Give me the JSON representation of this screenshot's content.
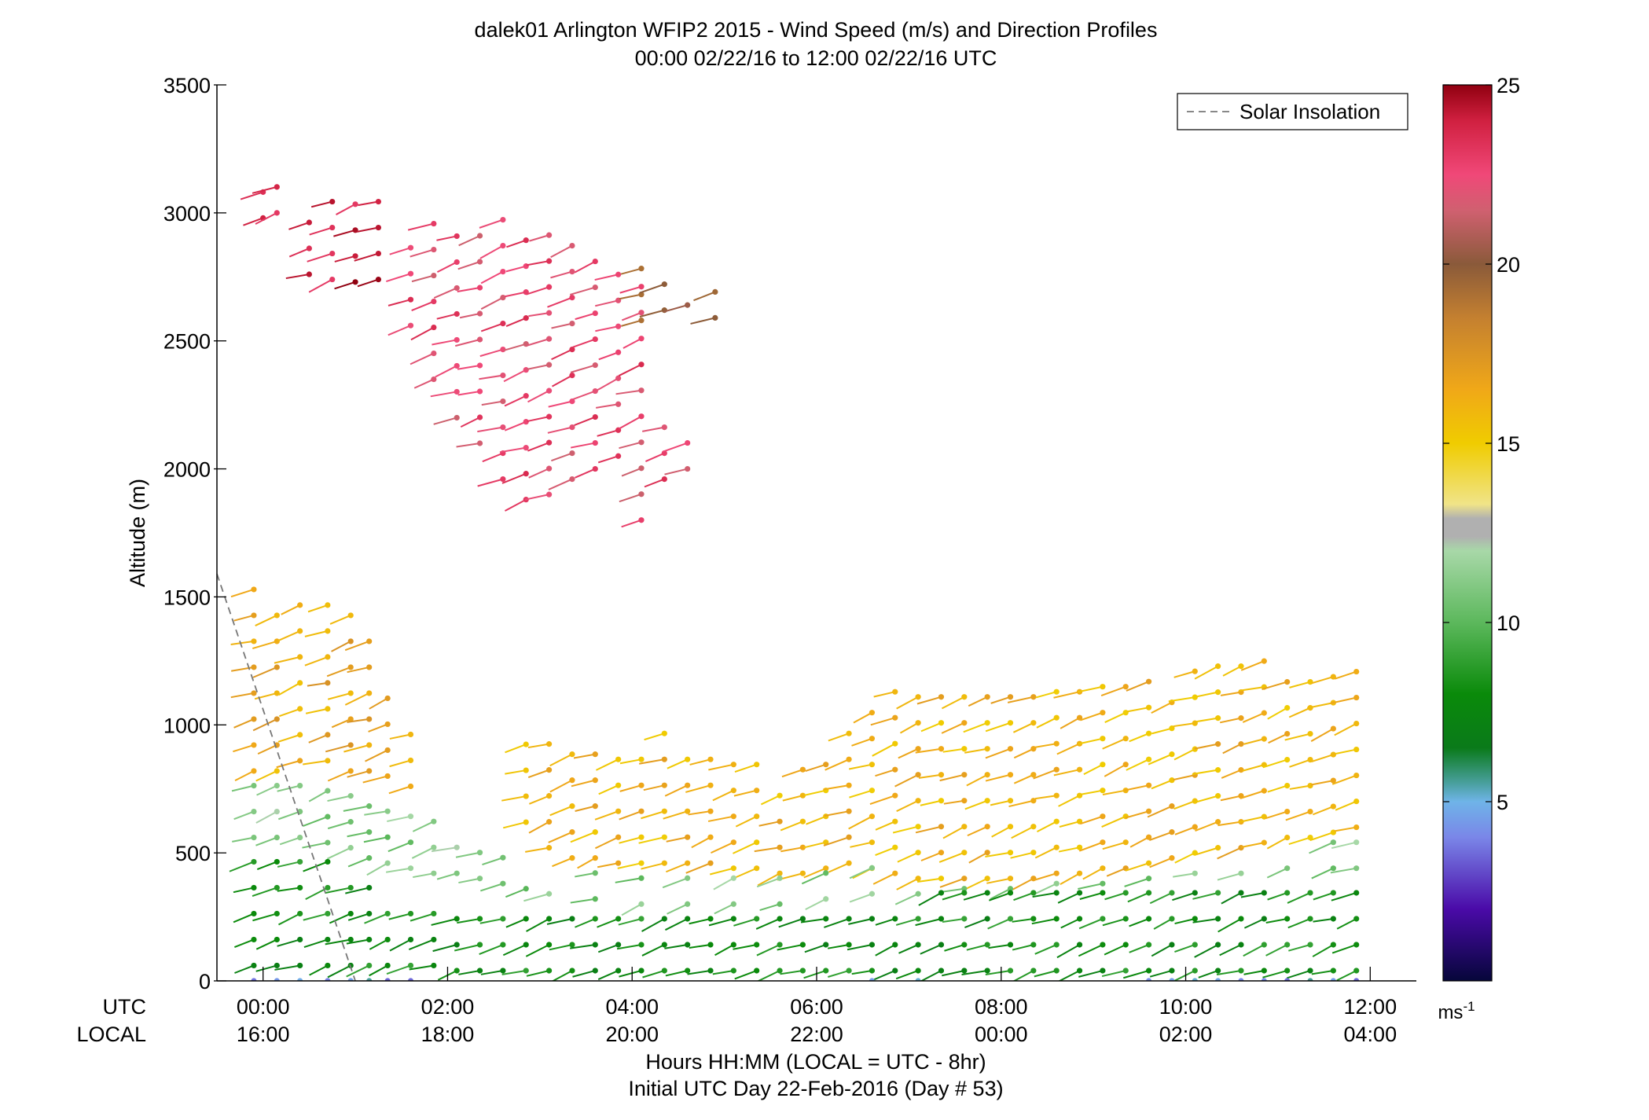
{
  "chart_data": {
    "type": "wind-barb-profile",
    "title": "dalek01 Arlington WFIP2 2015 - Wind Speed (m/s) and Direction Profiles",
    "subtitle": "00:00 02/22/16 to 12:00 02/22/16  UTC",
    "ylabel": "Altitude (m)",
    "xlabel": "Hours HH:MM  (LOCAL = UTC - 8hr)",
    "xlabel2": "Initial UTC Day 22-Feb-2016 (Day # 53)",
    "xlim": [
      -0.5,
      12.5
    ],
    "ylim": [
      0,
      3500
    ],
    "yticks": [
      0,
      500,
      1000,
      1500,
      2000,
      2500,
      3000,
      3500
    ],
    "xticks": [
      0,
      2,
      4,
      6,
      8,
      10,
      12
    ],
    "xtick_utc": [
      "00:00",
      "02:00",
      "04:00",
      "06:00",
      "08:00",
      "10:00",
      "12:00"
    ],
    "xtick_local": [
      "16:00",
      "18:00",
      "20:00",
      "22:00",
      "00:00",
      "02:00",
      "04:00"
    ],
    "row_label_utc": "UTC",
    "row_label_local": "LOCAL",
    "legend": {
      "label": "Solar Insolation",
      "placement": "top-right",
      "color": "#888888"
    },
    "solar_insolation": {
      "x": [
        -0.5,
        1.0
      ],
      "y": [
        1590,
        0
      ]
    },
    "colorbar": {
      "range": [
        0,
        25
      ],
      "ticks": [
        5,
        10,
        15,
        20,
        25
      ],
      "unit": "ms-1",
      "stops": [
        {
          "v": 0,
          "c": "#06063a"
        },
        {
          "v": 2,
          "c": "#4a0aa8"
        },
        {
          "v": 4,
          "c": "#7a86e8"
        },
        {
          "v": 5,
          "c": "#6fb4e8"
        },
        {
          "v": 5.5,
          "c": "#4aa0a0"
        },
        {
          "v": 6.5,
          "c": "#0a7a1a"
        },
        {
          "v": 8,
          "c": "#0a8a0a"
        },
        {
          "v": 10,
          "c": "#5cb85c"
        },
        {
          "v": 12,
          "c": "#a8d8a8"
        },
        {
          "v": 12.4,
          "c": "#b0b0b0"
        },
        {
          "v": 12.9,
          "c": "#b0b0b0"
        },
        {
          "v": 13.3,
          "c": "#f0e488"
        },
        {
          "v": 15,
          "c": "#f0cc00"
        },
        {
          "v": 16.5,
          "c": "#f0a818"
        },
        {
          "v": 18.5,
          "c": "#c48030"
        },
        {
          "v": 20,
          "c": "#8a5a3a"
        },
        {
          "v": 21.5,
          "c": "#d06070"
        },
        {
          "v": 22.5,
          "c": "#f04878"
        },
        {
          "v": 24,
          "c": "#d02040"
        },
        {
          "v": 25,
          "c": "#900010"
        }
      ]
    },
    "barb_fields": [
      {
        "name": "upper jet",
        "color_speed": 24,
        "cols": [
          [
            0.0,
            2980,
            3120
          ],
          [
            0.15,
            3000,
            3180
          ],
          [
            0.5,
            2760,
            3060
          ],
          [
            0.75,
            2740,
            3100
          ],
          [
            1.0,
            2730,
            3080
          ],
          [
            1.25,
            2740,
            3060
          ]
        ]
      },
      {
        "name": "upper jet pink",
        "color_speed": 22.5,
        "cols": [
          [
            1.6,
            2560,
            2940
          ],
          [
            1.85,
            2350,
            2980
          ],
          [
            2.1,
            2200,
            2960
          ],
          [
            2.35,
            2100,
            2980
          ],
          [
            2.6,
            1960,
            2980
          ],
          [
            2.85,
            1880,
            2980
          ],
          [
            3.1,
            1900,
            2980
          ],
          [
            3.35,
            1960,
            2920
          ],
          [
            3.6,
            2000,
            2820
          ],
          [
            3.85,
            2050,
            2820
          ],
          [
            4.1,
            1800,
            2780
          ],
          [
            4.35,
            1960,
            2240
          ],
          [
            4.6,
            2000,
            2150
          ]
        ]
      },
      {
        "name": "upper brown",
        "color_speed": 20,
        "cols": [
          [
            4.1,
            2580,
            2780
          ],
          [
            4.35,
            2620,
            2780
          ],
          [
            4.6,
            2640,
            2700
          ],
          [
            4.9,
            2590,
            2700
          ]
        ]
      },
      {
        "name": "residual jet",
        "color_speed": 16.5,
        "cols": [
          [
            -0.1,
            820,
            1530
          ],
          [
            0.15,
            820,
            1500
          ],
          [
            0.4,
            860,
            1480
          ],
          [
            0.7,
            860,
            1470
          ],
          [
            0.95,
            820,
            1480
          ],
          [
            1.15,
            820,
            1340
          ],
          [
            1.35,
            800,
            1200
          ],
          [
            1.6,
            760,
            1050
          ]
        ]
      },
      {
        "name": "night jet",
        "color_speed": 16,
        "cols": [
          [
            2.85,
            620,
            940
          ],
          [
            3.1,
            520,
            980
          ],
          [
            3.35,
            480,
            960
          ],
          [
            3.6,
            480,
            980
          ],
          [
            3.85,
            460,
            960
          ],
          [
            4.1,
            460,
            960
          ],
          [
            4.35,
            460,
            980
          ],
          [
            4.6,
            460,
            960
          ],
          [
            4.85,
            460,
            900
          ],
          [
            5.1,
            440,
            880
          ],
          [
            5.35,
            440,
            860
          ],
          [
            5.6,
            420,
            820
          ],
          [
            5.85,
            420,
            860
          ],
          [
            6.1,
            440,
            940
          ],
          [
            6.35,
            460,
            1000
          ],
          [
            6.6,
            440,
            1080
          ],
          [
            6.85,
            420,
            1160
          ],
          [
            7.1,
            400,
            1200
          ],
          [
            7.35,
            400,
            1200
          ],
          [
            7.6,
            400,
            1180
          ],
          [
            7.85,
            400,
            1180
          ],
          [
            8.1,
            400,
            1200
          ],
          [
            8.35,
            400,
            1180
          ],
          [
            8.6,
            420,
            1170
          ],
          [
            8.85,
            420,
            1170
          ],
          [
            9.1,
            440,
            1170
          ],
          [
            9.35,
            440,
            1170
          ],
          [
            9.6,
            460,
            1170
          ],
          [
            9.85,
            480,
            1160
          ],
          [
            10.1,
            500,
            1240
          ],
          [
            10.35,
            520,
            1300
          ],
          [
            10.6,
            520,
            1320
          ],
          [
            10.85,
            540,
            1300
          ],
          [
            11.1,
            560,
            1260
          ],
          [
            11.35,
            560,
            1240
          ],
          [
            11.6,
            580,
            1260
          ],
          [
            11.85,
            600,
            1240
          ]
        ]
      },
      {
        "name": "mid transition",
        "color_speed": 11,
        "cols": [
          [
            -0.1,
            560,
            820
          ],
          [
            0.15,
            560,
            800
          ],
          [
            0.4,
            560,
            760
          ],
          [
            0.7,
            540,
            760
          ],
          [
            0.95,
            520,
            760
          ],
          [
            1.15,
            480,
            760
          ],
          [
            1.35,
            460,
            740
          ],
          [
            1.6,
            440,
            740
          ],
          [
            1.85,
            420,
            680
          ],
          [
            2.1,
            420,
            600
          ],
          [
            2.35,
            400,
            540
          ],
          [
            2.6,
            380,
            480
          ],
          [
            2.85,
            360,
            440
          ],
          [
            3.1,
            340,
            420
          ],
          [
            3.6,
            320,
            440
          ],
          [
            4.1,
            300,
            420
          ],
          [
            4.6,
            300,
            420
          ],
          [
            5.1,
            300,
            400
          ],
          [
            5.6,
            300,
            400
          ],
          [
            6.1,
            320,
            420
          ],
          [
            6.6,
            340,
            440
          ],
          [
            7.1,
            340,
            420
          ],
          [
            7.6,
            360,
            420
          ],
          [
            8.1,
            360,
            420
          ],
          [
            8.6,
            380,
            440
          ],
          [
            9.1,
            380,
            440
          ],
          [
            9.6,
            400,
            460
          ],
          [
            10.1,
            420,
            480
          ],
          [
            10.6,
            420,
            500
          ],
          [
            11.1,
            440,
            520
          ],
          [
            11.6,
            440,
            540
          ],
          [
            11.85,
            440,
            560
          ]
        ]
      },
      {
        "name": "low level",
        "color_speed": 8,
        "cols": [
          [
            -0.1,
            60,
            540
          ],
          [
            0.15,
            60,
            520
          ],
          [
            0.4,
            60,
            500
          ],
          [
            0.7,
            60,
            480
          ],
          [
            0.95,
            60,
            420
          ],
          [
            1.15,
            60,
            370
          ],
          [
            1.35,
            60,
            340
          ],
          [
            1.6,
            60,
            320
          ],
          [
            1.85,
            60,
            300
          ],
          [
            2.1,
            40,
            300
          ],
          [
            2.35,
            40,
            320
          ],
          [
            2.6,
            40,
            320
          ],
          [
            2.85,
            40,
            300
          ],
          [
            3.1,
            40,
            320
          ],
          [
            3.35,
            40,
            320
          ],
          [
            3.6,
            40,
            300
          ],
          [
            3.85,
            40,
            300
          ],
          [
            4.1,
            40,
            300
          ],
          [
            4.35,
            40,
            300
          ],
          [
            4.6,
            40,
            300
          ],
          [
            4.85,
            40,
            300
          ],
          [
            5.1,
            40,
            300
          ],
          [
            5.35,
            40,
            300
          ],
          [
            5.6,
            40,
            300
          ],
          [
            5.85,
            40,
            300
          ],
          [
            6.1,
            40,
            320
          ],
          [
            6.35,
            40,
            340
          ],
          [
            6.6,
            40,
            340
          ],
          [
            6.85,
            40,
            340
          ],
          [
            7.1,
            40,
            340
          ],
          [
            7.35,
            40,
            360
          ],
          [
            7.6,
            40,
            360
          ],
          [
            7.85,
            40,
            360
          ],
          [
            8.1,
            40,
            360
          ],
          [
            8.35,
            40,
            380
          ],
          [
            8.6,
            40,
            380
          ],
          [
            8.85,
            40,
            380
          ],
          [
            9.1,
            40,
            380
          ],
          [
            9.35,
            40,
            400
          ],
          [
            9.6,
            40,
            400
          ],
          [
            9.85,
            40,
            420
          ],
          [
            10.1,
            40,
            420
          ],
          [
            10.35,
            40,
            420
          ],
          [
            10.6,
            40,
            420
          ],
          [
            10.85,
            40,
            440
          ],
          [
            11.1,
            40,
            440
          ],
          [
            11.35,
            40,
            440
          ],
          [
            11.6,
            40,
            440
          ],
          [
            11.85,
            40,
            440
          ]
        ]
      },
      {
        "name": "surface",
        "color_speed": 4.5,
        "cols": [
          [
            -0.1,
            0,
            40
          ],
          [
            0.15,
            0,
            40
          ],
          [
            0.4,
            0,
            40
          ],
          [
            0.7,
            0,
            40
          ],
          [
            0.95,
            0,
            40
          ],
          [
            1.15,
            0,
            40
          ],
          [
            1.35,
            0,
            40
          ],
          [
            1.6,
            0,
            40
          ],
          [
            6.6,
            0,
            30
          ],
          [
            7.1,
            0,
            30
          ],
          [
            9.6,
            0,
            40
          ],
          [
            9.85,
            0,
            60
          ],
          [
            10.1,
            0,
            60
          ],
          [
            10.35,
            0,
            80
          ],
          [
            10.6,
            0,
            60
          ],
          [
            10.85,
            0,
            60
          ],
          [
            11.1,
            0,
            60
          ],
          [
            11.35,
            0,
            80
          ],
          [
            11.6,
            0,
            60
          ],
          [
            11.85,
            0,
            60
          ]
        ]
      }
    ]
  }
}
